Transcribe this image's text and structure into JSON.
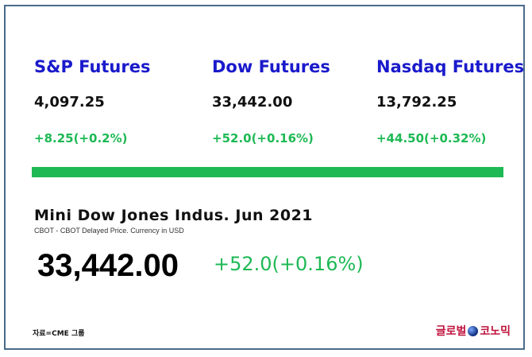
{
  "futures": [
    {
      "name": "S&P Futures",
      "price": "4,097.25",
      "change": "+8.25(+0.2%)"
    },
    {
      "name": "Dow Futures",
      "price": "33,442.00",
      "change": "+52.0(+0.16%)"
    },
    {
      "name": "Nasdaq Futures",
      "price": "13,792.25",
      "change": "+44.50(+0.32%)"
    }
  ],
  "detail": {
    "title": "Mini Dow Jones Indus. Jun  2021",
    "subtitle": "CBOT - CBOT Delayed Price. Currency in USD",
    "price": "33,442.00",
    "change": "+52.0(+0.16%)"
  },
  "footer": {
    "source": "자료=CME 그룹",
    "logo_left": "글로벌",
    "logo_right": "코노믹"
  },
  "colors": {
    "accent_blue": "#1a1acc",
    "positive_green": "#1db954",
    "logo_red": "#c0123c"
  }
}
